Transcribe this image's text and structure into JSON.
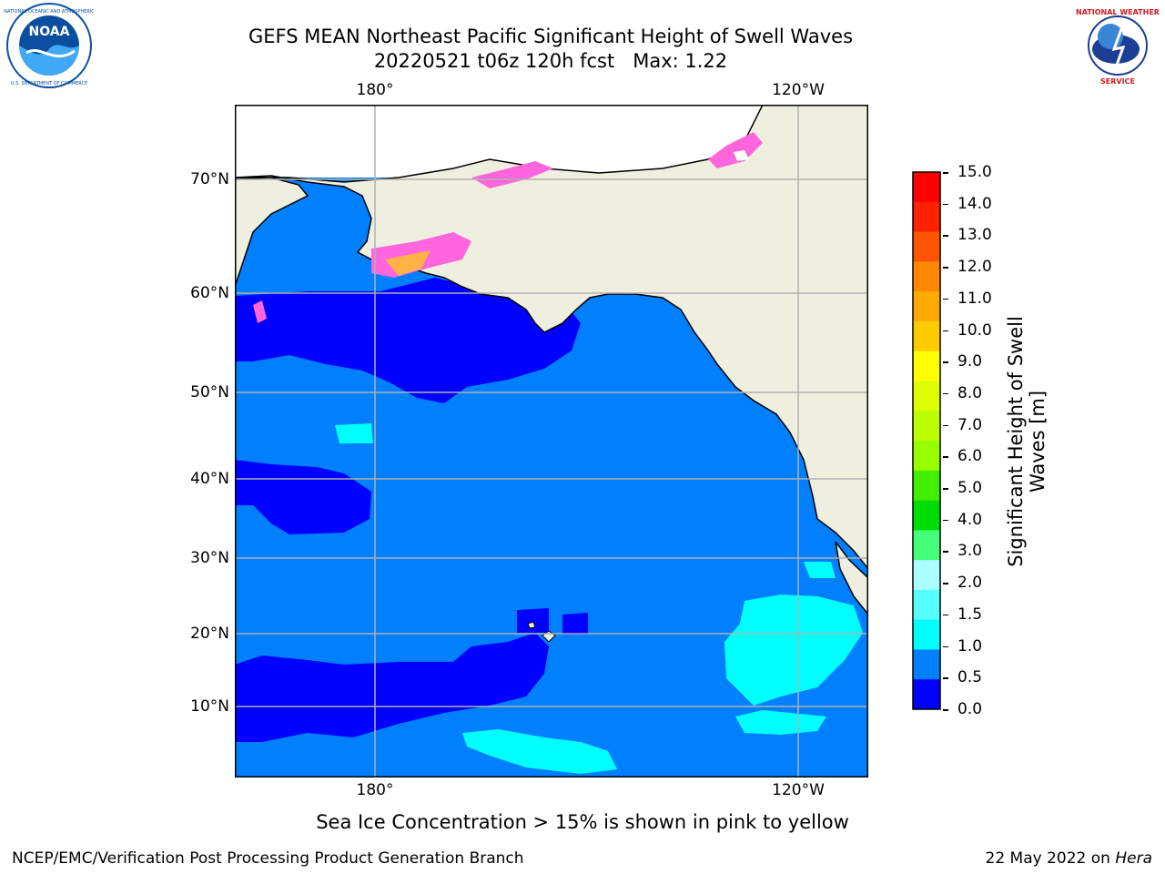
{
  "header": {
    "title_line1": "GEFS MEAN Northeast Pacific Significant Height of Swell Waves",
    "title_line2": "20220521 t06z 120h fcst   Max: 1.22"
  },
  "logos": {
    "left": {
      "name": "noaa-logo",
      "text": "NOAA",
      "ring_text": "NATIONAL OCEANIC AND ATMOSPHERIC ADMINISTRATION · U.S. DEPARTMENT OF COMMERCE",
      "color": "#0a4f9f"
    },
    "right": {
      "name": "nws-logo",
      "ring_text": "NATIONAL WEATHER SERVICE",
      "color": "#d71920"
    }
  },
  "map": {
    "lon_labels_top": [
      "180°",
      "120°W"
    ],
    "lon_labels_bottom": [
      "180°",
      "120°W"
    ],
    "lat_labels": [
      "70°N",
      "60°N",
      "50°N",
      "40°N",
      "30°N",
      "20°N",
      "10°N"
    ],
    "colors": {
      "land": "#efefdf",
      "ocean_0_5": "#0000ff",
      "ocean_0_5_1_0": "#0080ff",
      "ocean_1_0_1_5": "#00ffff",
      "ice_pink": "#ff66dd",
      "ice_orange": "#ffb347",
      "grid": "#b0b0b0"
    }
  },
  "colorbar": {
    "ticks": [
      "15.0",
      "14.0",
      "13.0",
      "12.0",
      "11.0",
      "10.0",
      "9.0",
      "8.0",
      "7.0",
      "6.0",
      "5.0",
      "4.0",
      "3.0",
      "2.0",
      "1.5",
      "1.0",
      "0.5",
      "0.0"
    ],
    "colors_top_to_bottom": [
      "#ff0000",
      "#ff2200",
      "#ff5500",
      "#ff8800",
      "#ffaa00",
      "#ffcc00",
      "#ffff00",
      "#ddff00",
      "#bbff00",
      "#99ff00",
      "#44ee00",
      "#00dd00",
      "#44ff77",
      "#aaffff",
      "#55ffff",
      "#00ffff",
      "#0080ff",
      "#0000ff"
    ],
    "label_line1": "Significant Height of Swell",
    "label_line2": "Waves [m]"
  },
  "note": "Sea Ice Concentration > 15% is shown in pink to yellow",
  "footer": {
    "left": "NCEP/EMC/Verification Post Processing Product Generation Branch",
    "right_date": "22 May 2022 on ",
    "right_host": "Hera"
  }
}
